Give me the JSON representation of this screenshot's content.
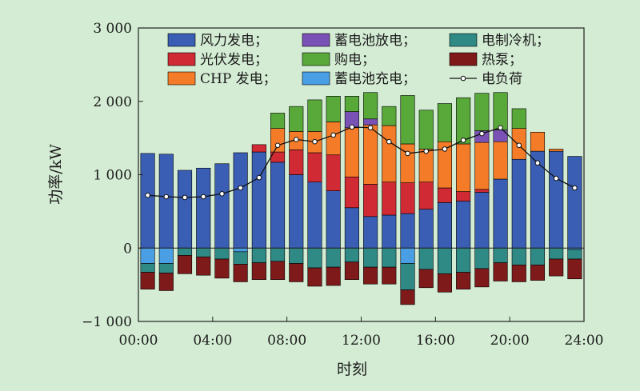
{
  "chart_data": {
    "type": "bar",
    "xlabel": "时刻",
    "ylabel": "功率/kW",
    "ylim": [
      -1000,
      3000
    ],
    "xlim": [
      0,
      24
    ],
    "yticks": [
      -1000,
      0,
      1000,
      2000,
      3000
    ],
    "ytick_labels": [
      "−1 000",
      "0",
      "1 000",
      "2 000",
      "3 000"
    ],
    "xticks": [
      0,
      4,
      8,
      12,
      16,
      20,
      24
    ],
    "xtick_labels": [
      "00:00",
      "04:00",
      "08:00",
      "12:00",
      "16:00",
      "20:00",
      "24:00"
    ],
    "grid": false,
    "legend_position": "top-left",
    "categories": [
      1,
      2,
      3,
      4,
      5,
      6,
      7,
      8,
      9,
      10,
      11,
      12,
      13,
      14,
      15,
      16,
      17,
      18,
      19,
      20,
      21,
      22,
      23,
      24
    ],
    "series": [
      {
        "name": "风力发电；",
        "color": "#3a5eb4",
        "values": [
          1290,
          1280,
          1060,
          1090,
          1150,
          1300,
          1310,
          1170,
          1000,
          900,
          780,
          550,
          430,
          450,
          470,
          530,
          620,
          640,
          760,
          940,
          1210,
          1320,
          1320,
          1250
        ]
      },
      {
        "name": "光伏发电；",
        "color": "#d02a35",
        "values": [
          0,
          0,
          0,
          0,
          0,
          0,
          100,
          140,
          340,
          400,
          490,
          420,
          440,
          450,
          420,
          370,
          200,
          130,
          40,
          0,
          0,
          0,
          0,
          0
        ]
      },
      {
        "name": "CHP 发电；",
        "color": "#f47c28",
        "values": [
          0,
          0,
          0,
          0,
          0,
          0,
          0,
          320,
          250,
          290,
          450,
          670,
          810,
          770,
          530,
          450,
          630,
          650,
          640,
          510,
          420,
          260,
          30,
          0
        ]
      },
      {
        "name": "蓄电池充电；",
        "color": "#4a9fe4",
        "values": [
          -210,
          -210,
          0,
          0,
          0,
          -50,
          0,
          0,
          0,
          0,
          0,
          0,
          0,
          0,
          -210,
          0,
          0,
          0,
          0,
          0,
          0,
          0,
          0,
          -20
        ]
      },
      {
        "name": "蓄电池放电；",
        "color": "#7a52b6",
        "values": [
          0,
          0,
          0,
          0,
          0,
          0,
          0,
          0,
          0,
          0,
          0,
          220,
          80,
          0,
          0,
          0,
          0,
          0,
          160,
          160,
          0,
          0,
          0,
          0
        ]
      },
      {
        "name": "购电；",
        "color": "#58a83a",
        "values": [
          0,
          0,
          0,
          0,
          0,
          0,
          0,
          210,
          340,
          430,
          350,
          210,
          360,
          260,
          660,
          530,
          520,
          630,
          510,
          510,
          270,
          0,
          0,
          0
        ]
      },
      {
        "name": "电制冷机；",
        "color": "#2f8a86",
        "values": [
          -120,
          -130,
          -100,
          -120,
          -150,
          -170,
          -200,
          -180,
          -210,
          -270,
          -260,
          -190,
          -260,
          -260,
          -360,
          -290,
          -350,
          -330,
          -280,
          -200,
          -230,
          -230,
          -150,
          -130
        ]
      },
      {
        "name": "热泵；",
        "color": "#7e1a1a",
        "values": [
          -230,
          -240,
          -250,
          -250,
          -260,
          -240,
          -230,
          -250,
          -250,
          -250,
          -250,
          -240,
          -230,
          -230,
          -200,
          -250,
          -250,
          -230,
          -250,
          -250,
          -230,
          -210,
          -230,
          -270
        ]
      },
      {
        "name": "电负荷",
        "type": "line",
        "color": "#111111",
        "x": [
          1,
          2,
          3,
          4,
          5,
          6,
          7,
          8,
          9,
          10,
          11,
          12,
          13,
          14,
          15,
          16,
          17,
          18,
          19,
          20,
          21,
          22,
          23,
          24
        ],
        "values": [
          720,
          700,
          690,
          700,
          740,
          820,
          960,
          1400,
          1480,
          1450,
          1540,
          1650,
          1640,
          1450,
          1290,
          1320,
          1350,
          1470,
          1560,
          1640,
          1400,
          1160,
          950,
          820
        ]
      }
    ]
  }
}
